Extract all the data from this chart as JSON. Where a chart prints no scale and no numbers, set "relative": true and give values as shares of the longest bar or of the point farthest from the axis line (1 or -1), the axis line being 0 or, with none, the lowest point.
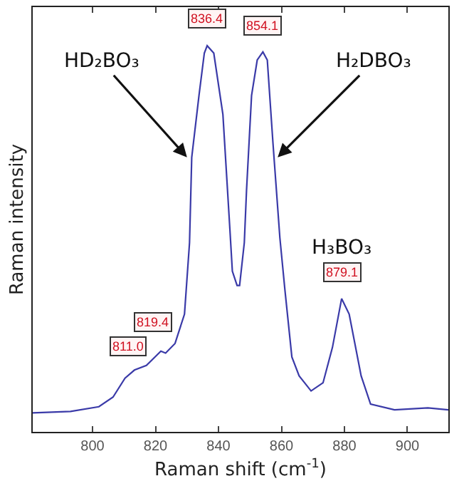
{
  "chart_data": {
    "type": "line",
    "relative": true,
    "xlabel": "Raman shift (cm$^{-1}$)",
    "ylabel": "Raman intensity",
    "xlim": [
      781,
      913
    ],
    "xticks": [
      800,
      820,
      840,
      860,
      880,
      900
    ],
    "line_style": "solid",
    "series": [
      {
        "color": "#3a3aa8",
        "x": [
          781,
          793,
          802,
          806.5,
          810.3,
          813.3,
          817.1,
          821.7,
          823.2,
          826.2,
          829.2,
          830.8,
          831.5,
          833.8,
          835.5,
          836.4,
          838.5,
          841.4,
          843.6,
          844.4,
          845.9,
          846.7,
          848.2,
          848.9,
          850.5,
          852.3,
          854.1,
          855.5,
          857.3,
          859.5,
          861.1,
          863.3,
          865.6,
          869.4,
          873.2,
          876.2,
          879.1,
          881.5,
          885.3,
          888.3,
          895.9,
          906.5,
          913
        ],
        "values": [
          0.049,
          0.053,
          0.065,
          0.09,
          0.139,
          0.16,
          0.172,
          0.209,
          0.204,
          0.229,
          0.305,
          0.49,
          0.711,
          0.871,
          0.981,
          1.0,
          0.981,
          0.822,
          0.527,
          0.416,
          0.379,
          0.379,
          0.49,
          0.625,
          0.871,
          0.963,
          0.984,
          0.963,
          0.748,
          0.502,
          0.367,
          0.194,
          0.145,
          0.106,
          0.127,
          0.219,
          0.345,
          0.305,
          0.145,
          0.072,
          0.057,
          0.062,
          0.057
        ]
      }
    ],
    "annotations": [
      {
        "text": "HD₂BO₃",
        "x": 830,
        "y": 0.711
      },
      {
        "text": "H₂DBO₃",
        "x": 858.8,
        "y": 0.711
      },
      {
        "text": "H₃BO₃",
        "x": 879.1,
        "y": 0.345
      },
      {
        "text": "836.4",
        "x": 836.4,
        "y": 1.0
      },
      {
        "text": "854.1",
        "x": 854.1,
        "y": 0.984
      },
      {
        "text": "879.1",
        "x": 879.1,
        "y": 0.345
      },
      {
        "text": "819.4",
        "x": 821.7,
        "y": 0.209
      },
      {
        "text": "811.0",
        "x": 812,
        "y": 0.16
      }
    ]
  }
}
